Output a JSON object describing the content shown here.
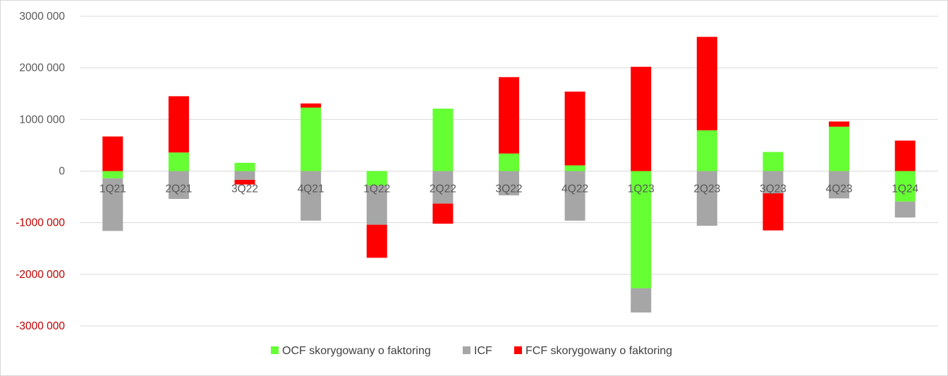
{
  "chart_data": {
    "type": "bar",
    "stacked": true,
    "categories": [
      "1Q21",
      "2Q21",
      "3Q22",
      "4Q21",
      "1Q22",
      "2Q22",
      "3Q22",
      "4Q22",
      "1Q23",
      "2Q23",
      "3Q23",
      "4Q23",
      "1Q24"
    ],
    "series": [
      {
        "name": "OCF skorygowany o faktoring",
        "color": "#66ff33",
        "values": [
          -140000,
          360000,
          160000,
          1230000,
          -280000,
          1210000,
          340000,
          110000,
          -2270000,
          790000,
          370000,
          860000,
          -590000
        ]
      },
      {
        "name": "ICF",
        "color": "#a6a6a6",
        "values": [
          -1020000,
          -540000,
          -170000,
          -960000,
          -760000,
          -630000,
          -470000,
          -960000,
          -470000,
          -1060000,
          -430000,
          -530000,
          -310000
        ]
      },
      {
        "name": "FCF skorygowany o faktoring",
        "color": "#ff0000",
        "values": [
          670000,
          1090000,
          -90000,
          80000,
          -640000,
          -390000,
          1480000,
          1430000,
          2020000,
          1810000,
          -720000,
          100000,
          590000
        ]
      }
    ],
    "ylim": [
      -3000000,
      3000000
    ],
    "yticks": [
      -3000000,
      -2000000,
      -1000000,
      0,
      1000000,
      2000000,
      3000000
    ],
    "ytick_labels": [
      "-3000 000",
      "-2000 000",
      "-1000 000",
      "0",
      "1000 000",
      "2000 000",
      "3000 000"
    ],
    "negative_tick_color": "#c00000",
    "positive_tick_color": "#595959",
    "grid": true,
    "legend_position": "bottom"
  }
}
